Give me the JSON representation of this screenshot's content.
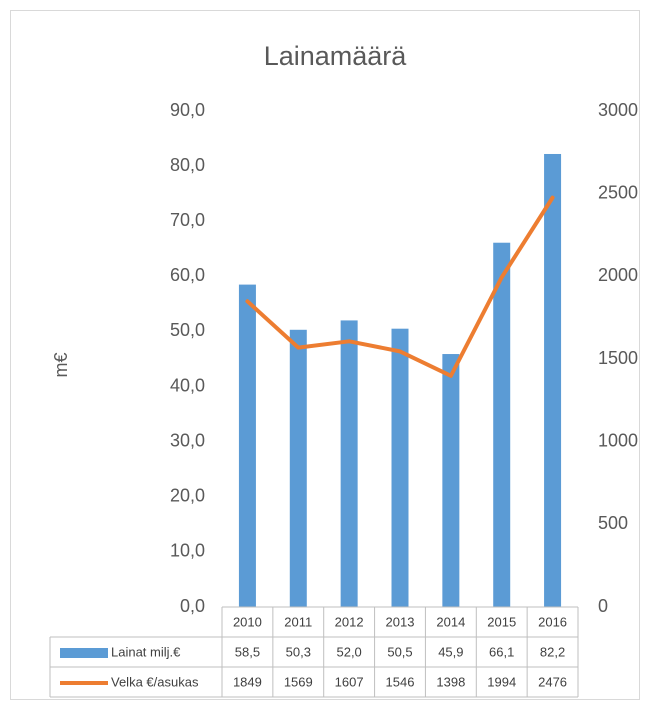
{
  "chart_data": {
    "type": "bar",
    "title": "Lainamäärä",
    "y_label": "m€",
    "categories": [
      "2010",
      "2011",
      "2012",
      "2013",
      "2014",
      "2015",
      "2016"
    ],
    "series": [
      {
        "name": "Lainat milj.€",
        "type": "bar",
        "color": "#5b9bd5",
        "values": [
          58.5,
          50.3,
          52.0,
          50.5,
          45.9,
          66.1,
          82.2
        ],
        "value_labels": [
          "58,5",
          "50,3",
          "52,0",
          "50,5",
          "45,9",
          "66,1",
          "82,2"
        ]
      },
      {
        "name": "Velka €/asukas",
        "type": "line",
        "axis": "y2",
        "color": "#ed7d31",
        "values": [
          1849,
          1569,
          1607,
          1546,
          1398,
          1994,
          2476
        ]
      }
    ],
    "ylim": [
      0,
      90
    ],
    "yticks": [
      {
        "value": 0,
        "label": "0,0"
      },
      {
        "value": 10,
        "label": "10,0"
      },
      {
        "value": 20,
        "label": "20,0"
      },
      {
        "value": 30,
        "label": "30,0"
      },
      {
        "value": 40,
        "label": "40,0"
      },
      {
        "value": 50,
        "label": "50,0"
      },
      {
        "value": 60,
        "label": "60,0"
      },
      {
        "value": 70,
        "label": "70,0"
      },
      {
        "value": 80,
        "label": "80,0"
      },
      {
        "value": 90,
        "label": "90,0"
      }
    ],
    "y2lim": [
      0,
      3000
    ],
    "y2ticks": [
      0,
      500,
      1000,
      1500,
      2000,
      2500,
      3000
    ],
    "grid": false,
    "data_table": true
  }
}
